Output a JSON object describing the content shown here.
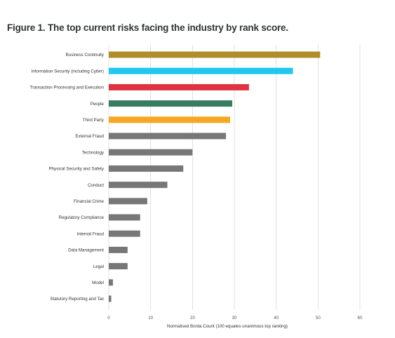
{
  "figure": {
    "title": "Figure 1. The top current risks facing the industry by rank score."
  },
  "chart_data": {
    "type": "bar",
    "orientation": "horizontal",
    "title": "Figure 1. The top current risks facing the industry by rank score.",
    "xlabel": "Normalised Borda Count (100 equates unanimous top ranking)",
    "ylabel": "",
    "xlim": [
      0,
      60
    ],
    "xticks": [
      0,
      10,
      20,
      30,
      40,
      50,
      60
    ],
    "grid": true,
    "categories": [
      "Business Continuity",
      "Information Security (including Cyber)",
      "Transaction Processing and Execution",
      "People",
      "Third Party",
      "External Fraud",
      "Technology",
      "Physical Security and Safety",
      "Conduct",
      "Financial Crime",
      "Regulatory Compliance",
      "Internal Fraud",
      "Data Management",
      "Legal",
      "Model",
      "Statutory Reporting and Tax"
    ],
    "values": [
      50.5,
      44,
      33.5,
      29.5,
      29,
      28,
      20,
      17.8,
      14,
      9.2,
      7.5,
      7.5,
      4.5,
      4.5,
      1,
      0.6
    ],
    "colors": [
      "#b08c2a",
      "#1ec8ee",
      "#e03341",
      "#367d62",
      "#f6a822",
      "#777777",
      "#777777",
      "#777777",
      "#777777",
      "#777777",
      "#777777",
      "#777777",
      "#777777",
      "#777777",
      "#777777",
      "#777777"
    ]
  }
}
